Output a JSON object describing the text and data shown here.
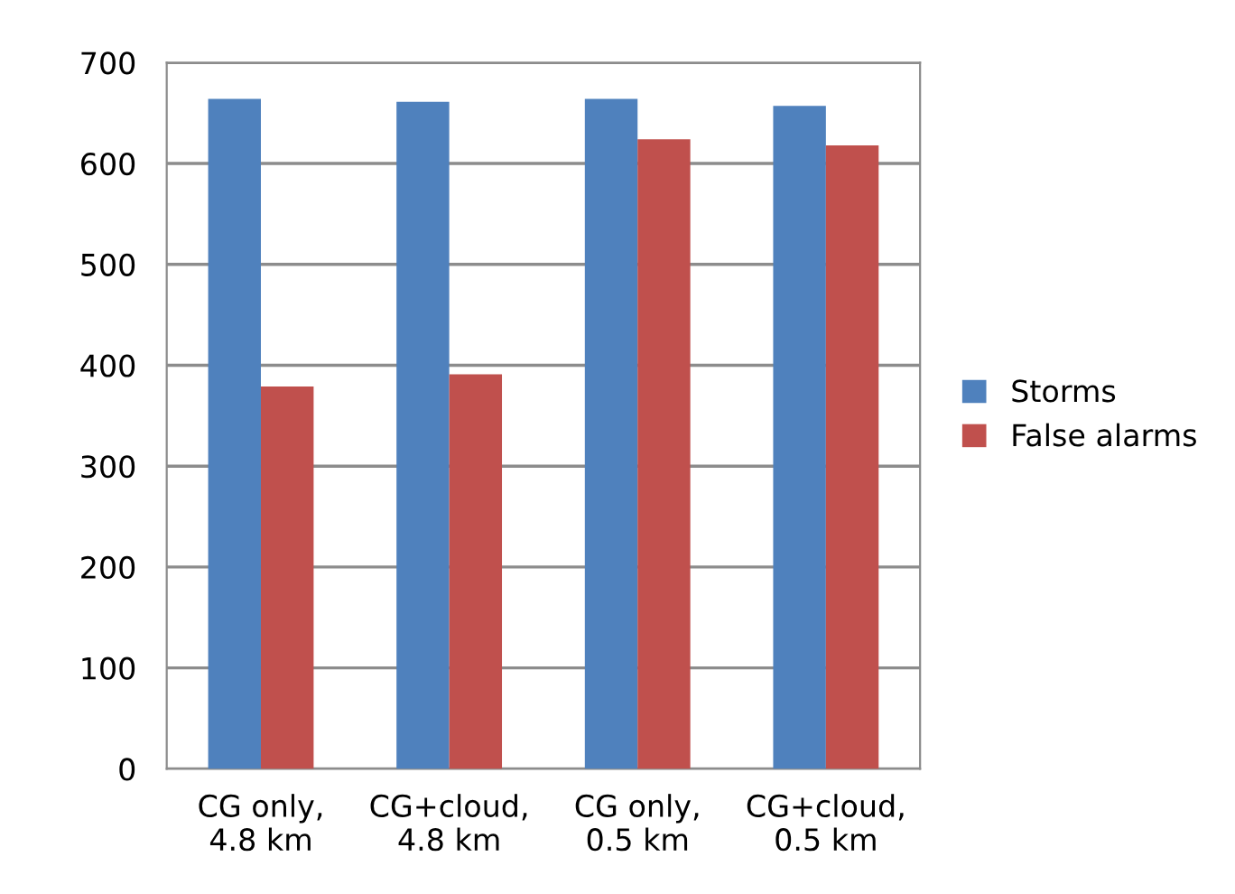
{
  "chart_data": {
    "type": "bar",
    "categories": [
      "CG only,\n4.8 km",
      "CG+cloud,\n4.8 km",
      "CG only,\n0.5 km",
      "CG+cloud,\n0.5 km"
    ],
    "series": [
      {
        "name": "Storms",
        "color": "#4f81bd",
        "values": [
          664,
          661,
          664,
          657
        ]
      },
      {
        "name": "False alarms",
        "color": "#c0504d",
        "values": [
          379,
          391,
          624,
          618
        ]
      }
    ],
    "ylim": [
      0,
      700
    ],
    "yticks": [
      0,
      100,
      200,
      300,
      400,
      500,
      600,
      700
    ],
    "grid": "y",
    "legend": "right"
  }
}
